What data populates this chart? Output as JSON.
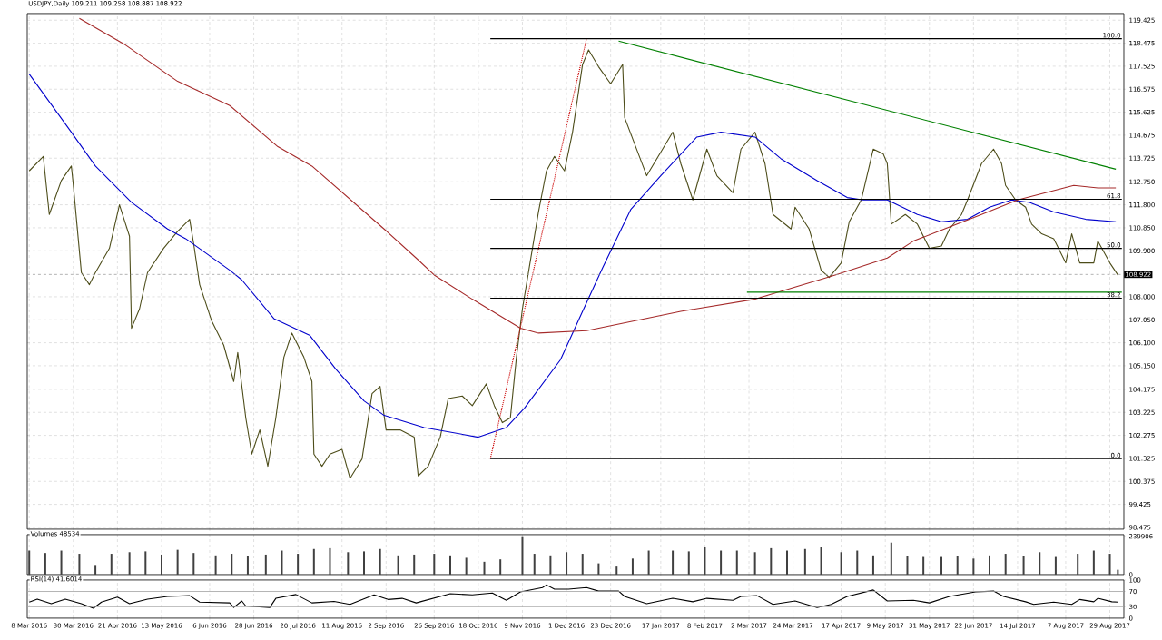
{
  "chart_data": [
    {
      "type": "line",
      "title": "USDJPY,Daily  109.211 109.258 108.887 108.922",
      "xlim": [
        "2016-03-07",
        "2017-09-05"
      ],
      "ylim": [
        98.4,
        119.7
      ],
      "yticks": [
        {
          "value": 98.475,
          "label": "98.475"
        },
        {
          "value": 99.425,
          "label": "99.425"
        },
        {
          "value": 100.375,
          "label": "100.375"
        },
        {
          "value": 101.325,
          "label": "101.325"
        },
        {
          "value": 102.275,
          "label": "102.275"
        },
        {
          "value": 103.225,
          "label": "103.225"
        },
        {
          "value": 104.175,
          "label": "104.175"
        },
        {
          "value": 105.15,
          "label": "105.150"
        },
        {
          "value": 106.1,
          "label": "106.100"
        },
        {
          "value": 107.05,
          "label": "107.050"
        },
        {
          "value": 108.0,
          "label": "108.000"
        },
        {
          "value": 109.9,
          "label": "109.900"
        },
        {
          "value": 110.85,
          "label": "110.850"
        },
        {
          "value": 111.8,
          "label": "111.800"
        },
        {
          "value": 112.75,
          "label": "112.750"
        },
        {
          "value": 113.725,
          "label": "113.725"
        },
        {
          "value": 114.675,
          "label": "114.675"
        },
        {
          "value": 115.625,
          "label": "115.625"
        },
        {
          "value": 116.575,
          "label": "116.575"
        },
        {
          "value": 117.525,
          "label": "117.525"
        },
        {
          "value": 118.475,
          "label": "118.475"
        },
        {
          "value": 119.425,
          "label": "119.425"
        }
      ],
      "tick_labels": "y",
      "grid": true,
      "series": [
        {
          "color": "#4d4d1a",
          "x": [
            "2016-03-08",
            "2016-03-15",
            "2016-03-18",
            "2016-03-24",
            "2016-03-29",
            "2016-03-30",
            "2016-04-03",
            "2016-04-07",
            "2016-04-10",
            "2016-04-17",
            "2016-04-22",
            "2016-04-27",
            "2016-04-28",
            "2016-05-02",
            "2016-05-06",
            "2016-05-14",
            "2016-05-21",
            "2016-05-27",
            "2016-05-29",
            "2016-06-01",
            "2016-06-07",
            "2016-06-13",
            "2016-06-18",
            "2016-06-20",
            "2016-06-24",
            "2016-06-27",
            "2016-07-01",
            "2016-07-05",
            "2016-07-09",
            "2016-07-13",
            "2016-07-17",
            "2016-07-23",
            "2016-07-27",
            "2016-07-28",
            "2016-08-01",
            "2016-08-05",
            "2016-08-11",
            "2016-08-15",
            "2016-08-21",
            "2016-08-26",
            "2016-08-30",
            "2016-09-02",
            "2016-09-09",
            "2016-09-16",
            "2016-09-18",
            "2016-09-23",
            "2016-09-29",
            "2016-10-03",
            "2016-10-10",
            "2016-10-15",
            "2016-10-22",
            "2016-10-26",
            "2016-10-30",
            "2016-11-03",
            "2016-11-06",
            "2016-11-09",
            "2016-11-13",
            "2016-11-17",
            "2016-11-21",
            "2016-11-25",
            "2016-11-30",
            "2016-12-04",
            "2016-12-09",
            "2016-12-12",
            "2016-12-17",
            "2016-12-23",
            "2016-12-29",
            "2016-12-30",
            "2017-01-10",
            "2017-01-23",
            "2017-01-27",
            "2017-02-02",
            "2017-02-09",
            "2017-02-14",
            "2017-02-22",
            "2017-02-26",
            "2017-03-05",
            "2017-03-10",
            "2017-03-14",
            "2017-03-23",
            "2017-03-25",
            "2017-04-01",
            "2017-04-07",
            "2017-04-11",
            "2017-04-17",
            "2017-04-21",
            "2017-04-27",
            "2017-05-03",
            "2017-05-08",
            "2017-05-10",
            "2017-05-12",
            "2017-05-19",
            "2017-05-25",
            "2017-05-31",
            "2017-06-06",
            "2017-06-10",
            "2017-06-16",
            "2017-06-19",
            "2017-06-26",
            "2017-07-02",
            "2017-07-06",
            "2017-07-08",
            "2017-07-13",
            "2017-07-18",
            "2017-07-21",
            "2017-07-26",
            "2017-08-01",
            "2017-08-07",
            "2017-08-10",
            "2017-08-14",
            "2017-08-21",
            "2017-08-23",
            "2017-08-29",
            "2017-09-02"
          ],
          "values": [
            113.2,
            113.8,
            111.4,
            112.8,
            113.4,
            112.6,
            109.0,
            108.5,
            109.0,
            110.0,
            111.8,
            110.5,
            106.7,
            107.5,
            109.0,
            110.0,
            110.7,
            111.2,
            110.2,
            108.5,
            107.0,
            106.0,
            104.5,
            105.7,
            103.0,
            101.5,
            102.5,
            101.0,
            103.0,
            105.5,
            106.5,
            105.5,
            104.5,
            101.5,
            101.0,
            101.5,
            101.7,
            100.5,
            101.3,
            104.0,
            104.3,
            102.5,
            102.5,
            102.2,
            100.6,
            101.0,
            102.2,
            103.8,
            103.9,
            103.5,
            104.4,
            103.5,
            102.8,
            103.0,
            105.5,
            107.5,
            109.5,
            111.5,
            113.2,
            113.8,
            113.2,
            114.8,
            117.6,
            118.2,
            117.5,
            116.8,
            117.6,
            115.4,
            113.0,
            114.8,
            113.5,
            112.0,
            114.1,
            113.0,
            112.3,
            114.1,
            114.8,
            113.5,
            111.4,
            110.8,
            111.7,
            110.8,
            109.1,
            108.8,
            109.4,
            111.1,
            112.0,
            114.1,
            113.9,
            113.5,
            111.0,
            111.4,
            111.0,
            110.0,
            110.1,
            110.8,
            111.4,
            112.0,
            113.5,
            114.1,
            113.5,
            112.6,
            112.0,
            111.7,
            111.0,
            110.6,
            110.4,
            109.4,
            110.6,
            109.4,
            109.4,
            110.3,
            109.4,
            108.9
          ]
        },
        {
          "color": "#0000cc",
          "x": [
            "2016-03-08",
            "2016-03-29",
            "2016-04-10",
            "2016-04-28",
            "2016-05-16",
            "2016-05-25",
            "2016-06-16",
            "2016-06-22",
            "2016-07-08",
            "2016-07-26",
            "2016-08-08",
            "2016-08-22",
            "2016-09-01",
            "2016-09-21",
            "2016-10-18",
            "2016-11-01",
            "2016-11-10",
            "2016-11-28",
            "2016-12-09",
            "2016-12-19",
            "2017-01-02",
            "2017-01-17",
            "2017-02-04",
            "2017-02-16",
            "2017-03-05",
            "2017-03-18",
            "2017-04-05",
            "2017-04-20",
            "2017-04-28",
            "2017-05-10",
            "2017-05-25",
            "2017-06-06",
            "2017-06-19",
            "2017-06-30",
            "2017-07-11",
            "2017-07-20",
            "2017-08-01",
            "2017-08-17",
            "2017-09-01"
          ],
          "values": [
            117.2,
            114.8,
            113.4,
            111.9,
            110.8,
            110.4,
            109.1,
            108.7,
            107.1,
            106.4,
            105.0,
            103.7,
            103.1,
            102.6,
            102.2,
            102.6,
            103.4,
            105.4,
            107.4,
            109.2,
            111.6,
            113.0,
            114.6,
            114.8,
            114.6,
            113.7,
            112.8,
            112.1,
            112.0,
            112.0,
            111.4,
            111.1,
            111.2,
            111.7,
            112.0,
            111.9,
            111.5,
            111.2,
            111.1
          ]
        },
        {
          "color": "#a52a2a",
          "x": [
            "2016-04-02",
            "2016-04-25",
            "2016-05-21",
            "2016-06-16",
            "2016-07-10",
            "2016-07-27",
            "2016-09-01",
            "2016-09-17",
            "2016-09-26",
            "2016-10-15",
            "2016-11-08",
            "2016-11-17",
            "2016-12-11",
            "2017-01-27",
            "2017-03-05",
            "2017-04-14",
            "2017-05-10",
            "2017-05-23",
            "2017-06-26",
            "2017-07-14",
            "2017-08-11",
            "2017-08-23",
            "2017-09-01"
          ],
          "values": [
            119.5,
            118.4,
            116.9,
            115.9,
            114.2,
            113.4,
            110.8,
            109.6,
            108.9,
            107.9,
            106.7,
            106.5,
            106.6,
            107.4,
            107.9,
            108.9,
            109.6,
            110.3,
            111.4,
            112.0,
            112.6,
            112.5,
            112.5
          ]
        },
        {
          "color": "#008000",
          "x": [
            "2016-12-27",
            "2017-09-01"
          ],
          "values": [
            118.56,
            113.27
          ]
        },
        {
          "color": "#008000",
          "x": [
            "2017-03-01",
            "2017-09-04"
          ],
          "values": [
            108.19,
            108.19
          ]
        },
        {
          "color": "#cc0000",
          "line_style": "dotted",
          "x": [
            "2016-10-24",
            "2016-12-11"
          ],
          "values": [
            101.31,
            118.66
          ]
        },
        {
          "color": "#000000",
          "x": [
            "2016-10-24",
            "2017-09-04"
          ],
          "values": [
            118.66,
            118.66
          ]
        },
        {
          "color": "#000000",
          "x": [
            "2016-10-24",
            "2017-09-04"
          ],
          "values": [
            112.03,
            112.03
          ]
        },
        {
          "color": "#000000",
          "x": [
            "2016-10-24",
            "2017-09-04"
          ],
          "values": [
            110.0,
            110.0
          ]
        },
        {
          "color": "#000000",
          "x": [
            "2016-10-24",
            "2017-09-04"
          ],
          "values": [
            107.94,
            107.94
          ]
        },
        {
          "color": "#000000",
          "x": [
            "2016-10-24",
            "2017-09-04"
          ],
          "values": [
            101.31,
            101.31
          ]
        }
      ],
      "annotations": [
        {
          "text": "100.0",
          "x": "2017-09-04",
          "y": 118.66
        },
        {
          "text": "61.8",
          "x": "2017-09-04",
          "y": 112.03
        },
        {
          "text": "50.0",
          "x": "2017-09-04",
          "y": 110.0
        },
        {
          "text": "38.2",
          "x": "2017-09-04",
          "y": 107.94
        },
        {
          "text": "0.0",
          "x": "2017-09-04",
          "y": 101.31
        }
      ],
      "ref_lines": [
        {
          "axis": "y",
          "value": 108.922,
          "label": "108.922",
          "color": "#a0a0a0",
          "line_style": "dashed"
        }
      ]
    },
    {
      "type": "bar",
      "title": "Volumes 48534",
      "xlim": [
        "2016-03-07",
        "2017-09-05"
      ],
      "ylim": [
        0,
        250000
      ],
      "yticks": [
        0,
        239906
      ],
      "tick_labels": "y",
      "grid": "x",
      "color": "#404040",
      "x": [
        "2016-03-08",
        "2016-03-16",
        "2016-03-24",
        "2016-04-02",
        "2016-04-10",
        "2016-04-18",
        "2016-04-27",
        "2016-05-05",
        "2016-05-13",
        "2016-05-21",
        "2016-05-29",
        "2016-06-09",
        "2016-06-17",
        "2016-06-25",
        "2016-07-04",
        "2016-07-12",
        "2016-07-20",
        "2016-07-28",
        "2016-08-05",
        "2016-08-14",
        "2016-08-22",
        "2016-08-30",
        "2016-09-08",
        "2016-09-16",
        "2016-09-26",
        "2016-10-04",
        "2016-10-12",
        "2016-10-21",
        "2016-10-29",
        "2016-11-09",
        "2016-11-15",
        "2016-11-23",
        "2016-12-01",
        "2016-12-09",
        "2016-12-17",
        "2016-12-26",
        "2017-01-03",
        "2017-01-11",
        "2017-01-23",
        "2017-01-31",
        "2017-02-08",
        "2017-02-16",
        "2017-02-24",
        "2017-03-05",
        "2017-03-13",
        "2017-03-21",
        "2017-03-30",
        "2017-04-07",
        "2017-04-17",
        "2017-04-25",
        "2017-05-03",
        "2017-05-12",
        "2017-05-20",
        "2017-05-28",
        "2017-06-06",
        "2017-06-14",
        "2017-06-22",
        "2017-06-30",
        "2017-07-08",
        "2017-07-17",
        "2017-07-25",
        "2017-08-02",
        "2017-08-13",
        "2017-08-21",
        "2017-08-29",
        "2017-09-02"
      ],
      "values": [
        150000,
        135000,
        150000,
        130000,
        60000,
        130000,
        140000,
        145000,
        125000,
        155000,
        135000,
        120000,
        130000,
        115000,
        125000,
        150000,
        130000,
        160000,
        165000,
        140000,
        145000,
        160000,
        120000,
        125000,
        130000,
        120000,
        105000,
        80000,
        95000,
        239906,
        130000,
        120000,
        140000,
        130000,
        70000,
        50000,
        100000,
        150000,
        150000,
        145000,
        170000,
        150000,
        150000,
        140000,
        165000,
        150000,
        160000,
        170000,
        140000,
        150000,
        120000,
        200000,
        115000,
        110000,
        110000,
        115000,
        100000,
        120000,
        130000,
        115000,
        140000,
        110000,
        130000,
        150000,
        130000,
        30000
      ]
    },
    {
      "type": "line",
      "title": "RSI(14) 41.6014",
      "xlim": [
        "2016-03-07",
        "2017-09-05"
      ],
      "ylim": [
        0,
        100
      ],
      "yticks": [
        0,
        30,
        70,
        100
      ],
      "xticks": [
        {
          "value": "2016-03-08",
          "label": "8 Mar 2016"
        },
        {
          "value": "2016-03-30",
          "label": "30 Mar 2016"
        },
        {
          "value": "2016-04-21",
          "label": "21 Apr 2016"
        },
        {
          "value": "2016-05-13",
          "label": "13 May 2016"
        },
        {
          "value": "2016-06-06",
          "label": "6 Jun 2016"
        },
        {
          "value": "2016-06-28",
          "label": "28 Jun 2016"
        },
        {
          "value": "2016-07-20",
          "label": "20 Jul 2016"
        },
        {
          "value": "2016-08-11",
          "label": "11 Aug 2016"
        },
        {
          "value": "2016-09-02",
          "label": "2 Sep 2016"
        },
        {
          "value": "2016-09-26",
          "label": "26 Sep 2016"
        },
        {
          "value": "2016-10-18",
          "label": "18 Oct 2016"
        },
        {
          "value": "2016-11-09",
          "label": "9 Nov 2016"
        },
        {
          "value": "2016-12-01",
          "label": "1 Dec 2016"
        },
        {
          "value": "2016-12-23",
          "label": "23 Dec 2016"
        },
        {
          "value": "2017-01-17",
          "label": "17 Jan 2017"
        },
        {
          "value": "2017-02-08",
          "label": "8 Feb 2017"
        },
        {
          "value": "2017-03-02",
          "label": "2 Mar 2017"
        },
        {
          "value": "2017-03-24",
          "label": "24 Mar 2017"
        },
        {
          "value": "2017-04-17",
          "label": "17 Apr 2017"
        },
        {
          "value": "2017-05-09",
          "label": "9 May 2017"
        },
        {
          "value": "2017-05-31",
          "label": "31 May 2017"
        },
        {
          "value": "2017-06-22",
          "label": "22 Jun 2017"
        },
        {
          "value": "2017-07-14",
          "label": "14 Jul 2017"
        },
        {
          "value": "2017-08-07",
          "label": "7 Aug 2017"
        },
        {
          "value": "2017-08-29",
          "label": "29 Aug 2017"
        }
      ],
      "grid": "x",
      "series": [
        {
          "color": "#000000",
          "x": [
            "2016-03-08",
            "2016-03-12",
            "2016-03-19",
            "2016-03-26",
            "2016-04-03",
            "2016-04-09",
            "2016-04-13",
            "2016-04-21",
            "2016-04-27",
            "2016-05-06",
            "2016-05-16",
            "2016-05-27",
            "2016-06-01",
            "2016-06-16",
            "2016-06-18",
            "2016-06-22",
            "2016-06-24",
            "2016-07-06",
            "2016-07-09",
            "2016-07-19",
            "2016-07-27",
            "2016-08-07",
            "2016-08-15",
            "2016-08-27",
            "2016-09-03",
            "2016-09-10",
            "2016-09-17",
            "2016-10-04",
            "2016-10-15",
            "2016-10-25",
            "2016-11-01",
            "2016-11-08",
            "2016-11-19",
            "2016-11-21",
            "2016-11-25",
            "2016-12-02",
            "2016-12-11",
            "2016-12-17",
            "2016-12-27",
            "2016-12-30",
            "2017-01-10",
            "2017-01-23",
            "2017-02-02",
            "2017-02-09",
            "2017-02-22",
            "2017-02-26",
            "2017-03-06",
            "2017-03-14",
            "2017-03-25",
            "2017-04-05",
            "2017-04-12",
            "2017-04-20",
            "2017-05-03",
            "2017-05-10",
            "2017-05-23",
            "2017-05-31",
            "2017-06-10",
            "2017-06-23",
            "2017-07-02",
            "2017-07-07",
            "2017-07-18",
            "2017-07-22",
            "2017-08-01",
            "2017-08-10",
            "2017-08-14",
            "2017-08-21",
            "2017-08-23",
            "2017-08-30",
            "2017-09-02"
          ],
          "values": [
            42,
            50,
            38,
            50,
            38,
            26,
            42,
            55,
            38,
            50,
            57,
            59,
            42,
            40,
            28,
            45,
            32,
            28,
            52,
            62,
            40,
            44,
            36,
            61,
            49,
            52,
            40,
            64,
            61,
            66,
            47,
            69,
            80,
            87,
            76,
            76,
            80,
            71,
            71,
            57,
            38,
            52,
            43,
            52,
            47,
            57,
            59,
            36,
            45,
            28,
            36,
            57,
            74,
            45,
            47,
            40,
            57,
            69,
            71,
            57,
            43,
            36,
            42,
            36,
            49,
            43,
            52,
            43,
            42
          ]
        }
      ],
      "ref_lines": [
        {
          "axis": "y",
          "value": 70,
          "color": "#a0a0a0"
        },
        {
          "axis": "y",
          "value": 30,
          "color": "#a0a0a0"
        }
      ]
    }
  ]
}
